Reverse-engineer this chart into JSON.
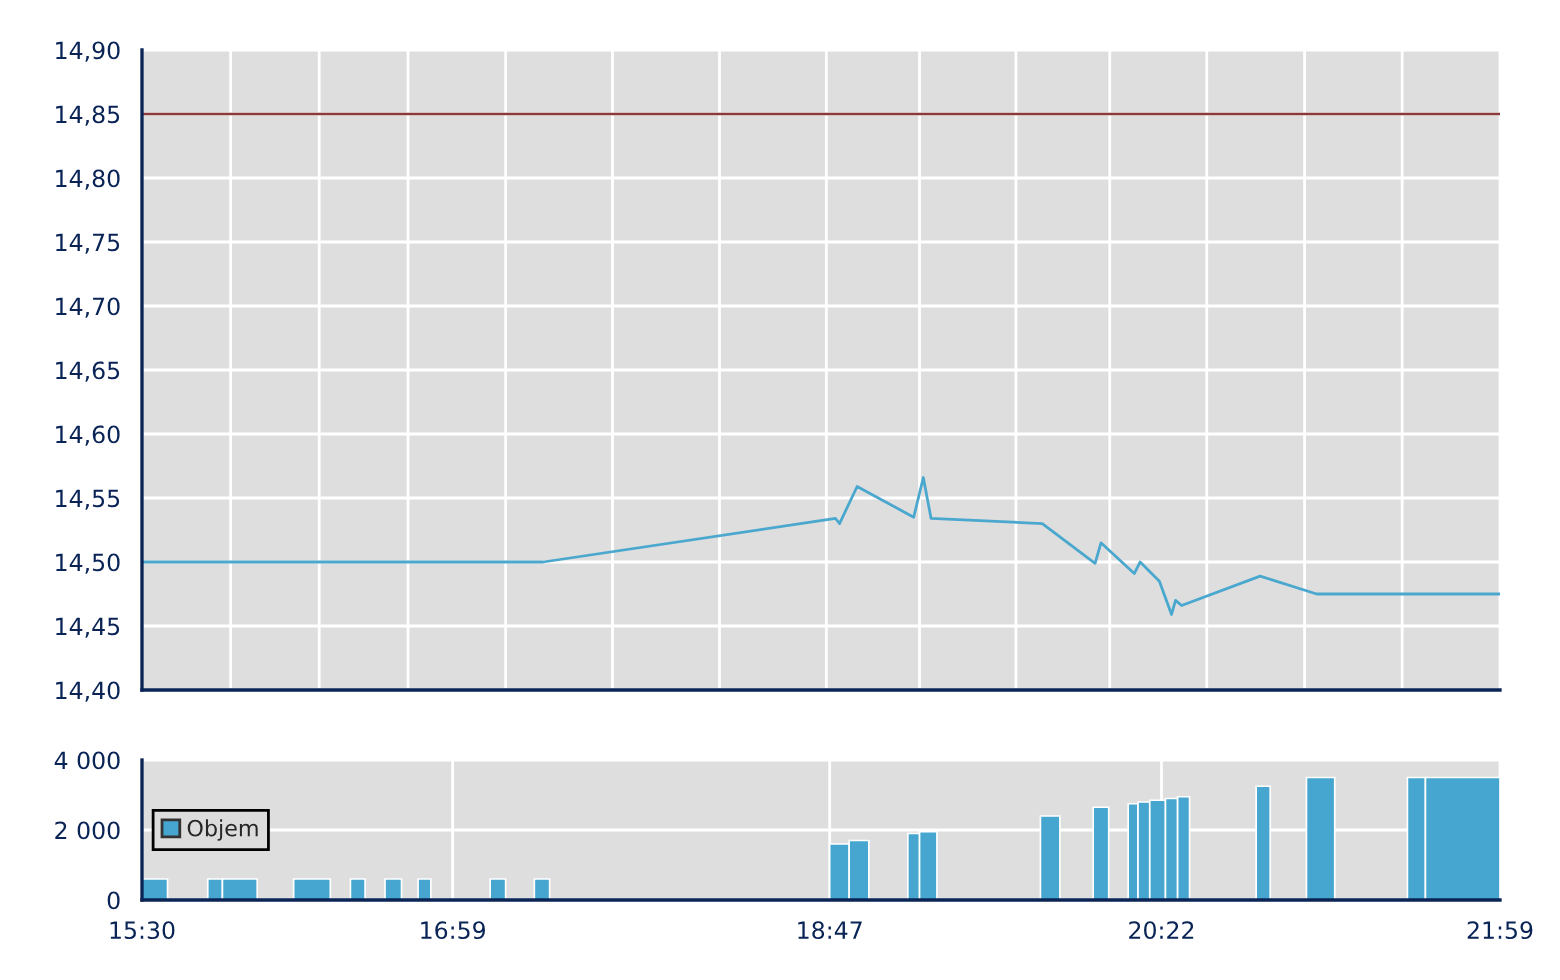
{
  "chart_data": [
    {
      "type": "line",
      "series": [
        {
          "color": "#4aa8cf",
          "x": [
            15.5,
            17.415,
            18.811,
            18.83,
            18.914,
            19.184,
            19.23,
            19.267,
            19.798,
            20.05,
            20.078,
            20.237,
            20.265,
            20.357,
            20.415,
            20.434,
            20.463,
            20.838,
            21.108,
            21.983
          ],
          "values": [
            14.5,
            14.5,
            14.534,
            14.53,
            14.559,
            14.535,
            14.566,
            14.534,
            14.53,
            14.499,
            14.515,
            14.491,
            14.5,
            14.485,
            14.459,
            14.47,
            14.466,
            14.489,
            14.475,
            14.475
          ]
        }
      ],
      "xlim": [
        15.5,
        21.983
      ],
      "xticks": [
        {
          "value": 15.5,
          "label": null
        },
        {
          "value": 15.923,
          "label": null
        },
        {
          "value": 16.346,
          "label": null
        },
        {
          "value": 16.77,
          "label": null
        },
        {
          "value": 17.236,
          "label": null
        },
        {
          "value": 17.746,
          "label": null
        },
        {
          "value": 18.257,
          "label": null
        },
        {
          "value": 18.767,
          "label": null
        },
        {
          "value": 19.212,
          "label": null
        },
        {
          "value": 19.672,
          "label": null
        },
        {
          "value": 20.12,
          "label": null
        },
        {
          "value": 20.583,
          "label": null
        },
        {
          "value": 21.05,
          "label": null
        },
        {
          "value": 21.516,
          "label": null
        },
        {
          "value": 21.983,
          "label": null
        }
      ],
      "ylim": [
        14.4,
        14.9
      ],
      "yticks": [
        {
          "value": 14.4,
          "label": "14,40"
        },
        {
          "value": 14.45,
          "label": "14,45"
        },
        {
          "value": 14.5,
          "label": "14,50"
        },
        {
          "value": 14.55,
          "label": "14,55"
        },
        {
          "value": 14.6,
          "label": "14,60"
        },
        {
          "value": 14.65,
          "label": "14,65"
        },
        {
          "value": 14.7,
          "label": "14,70"
        },
        {
          "value": 14.75,
          "label": "14,75"
        },
        {
          "value": 14.8,
          "label": "14,80"
        },
        {
          "value": 14.85,
          "label": "14,85"
        },
        {
          "value": 14.9,
          "label": "14,90"
        }
      ],
      "ref_lines": [
        {
          "axis": "y",
          "value": 14.85,
          "color": "#8b3a3a"
        }
      ],
      "grid": true,
      "tick_labels": "y"
    },
    {
      "type": "histogram",
      "bins": [
        15.5,
        15.622,
        15.814,
        15.884,
        16.05,
        16.224,
        16.399,
        16.495,
        16.565,
        16.66,
        16.739,
        16.818,
        16.879,
        17.162,
        17.236,
        17.373,
        17.446,
        18.783,
        18.876,
        18.97,
        19.156,
        19.212,
        19.295,
        19.789,
        19.882,
        20.041,
        20.115,
        20.208,
        20.255,
        20.311,
        20.386,
        20.444,
        20.501,
        20.819,
        20.886,
        21.059,
        21.194,
        21.541,
        21.627,
        21.983
      ],
      "series": [
        {
          "name": "Objem",
          "color": "#46a6cf",
          "values": [
            600,
            0,
            600,
            600,
            0,
            600,
            0,
            600,
            0,
            600,
            0,
            600,
            0,
            600,
            0,
            600,
            0,
            1600,
            1700,
            0,
            1900,
            1950,
            0,
            2400,
            0,
            2650,
            0,
            2750,
            2800,
            2850,
            2900,
            2950,
            0,
            3250,
            0,
            3500,
            0,
            3500,
            3500
          ]
        }
      ],
      "xlim": [
        15.5,
        21.983
      ],
      "xticks": [
        {
          "value": 15.5,
          "label": "15:30"
        },
        {
          "value": 16.983,
          "label": "16:59"
        },
        {
          "value": 18.783,
          "label": "18:47"
        },
        {
          "value": 20.367,
          "label": "20:22"
        },
        {
          "value": 21.983,
          "label": "21:59"
        }
      ],
      "ylim": [
        0,
        4000
      ],
      "yticks": [
        {
          "value": 0,
          "label": "0"
        },
        {
          "value": 2000,
          "label": "2 000"
        },
        {
          "value": 4000,
          "label": "4 000"
        }
      ],
      "grid": true,
      "legend": "left"
    }
  ]
}
